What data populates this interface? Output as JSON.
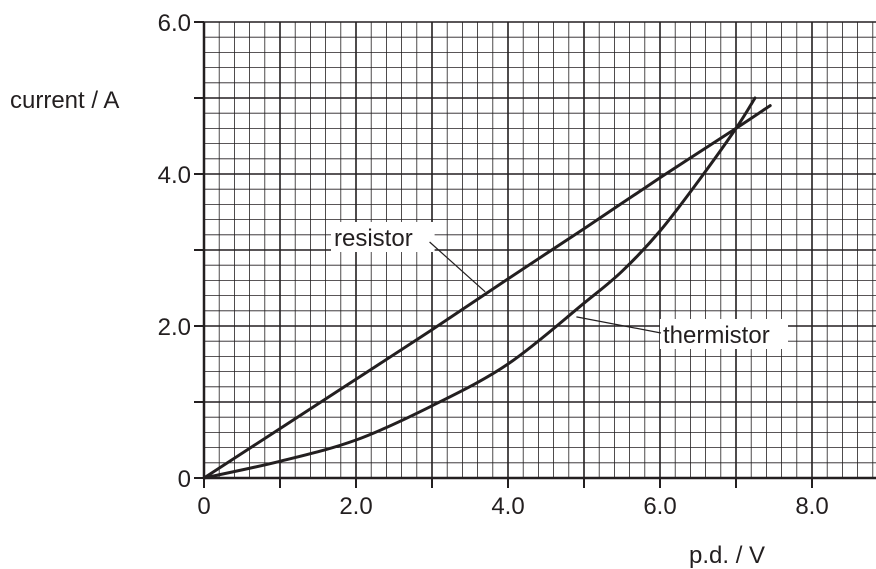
{
  "chart_data": {
    "type": "line",
    "xlabel": "p.d. / V",
    "ylabel": "current / A",
    "xlim": [
      0,
      8.9
    ],
    "ylim": [
      0,
      6.0
    ],
    "x_ticks": [
      {
        "value": 0,
        "label": "0"
      },
      {
        "value": 2,
        "label": "2.0"
      },
      {
        "value": 4,
        "label": "4.0"
      },
      {
        "value": 6,
        "label": "6.0"
      },
      {
        "value": 8,
        "label": "8.0"
      }
    ],
    "y_ticks": [
      {
        "value": 0,
        "label": "0"
      },
      {
        "value": 2,
        "label": "2.0"
      },
      {
        "value": 4,
        "label": "4.0"
      },
      {
        "value": 6,
        "label": "6.0"
      }
    ],
    "grid": {
      "minor_step": 0.2,
      "major_step": 1.0
    },
    "series": [
      {
        "name": "resistor",
        "x": [
          0,
          1,
          2,
          3,
          4,
          5,
          6,
          7,
          7.45
        ],
        "y": [
          0,
          0.65,
          1.3,
          1.95,
          2.62,
          3.28,
          3.95,
          4.6,
          4.9
        ]
      },
      {
        "name": "thermistor",
        "x": [
          0,
          1,
          2,
          3,
          4,
          5,
          5.5,
          6,
          6.5,
          7,
          7.25
        ],
        "y": [
          0,
          0.22,
          0.5,
          0.95,
          1.5,
          2.3,
          2.72,
          3.25,
          3.9,
          4.6,
          5.0
        ]
      }
    ],
    "annotations": [
      {
        "text": "resistor",
        "series": "resistor",
        "point": [
          3.7,
          2.45
        ]
      },
      {
        "text": "thermistor",
        "series": "thermistor",
        "point": [
          4.9,
          2.12
        ]
      }
    ]
  }
}
